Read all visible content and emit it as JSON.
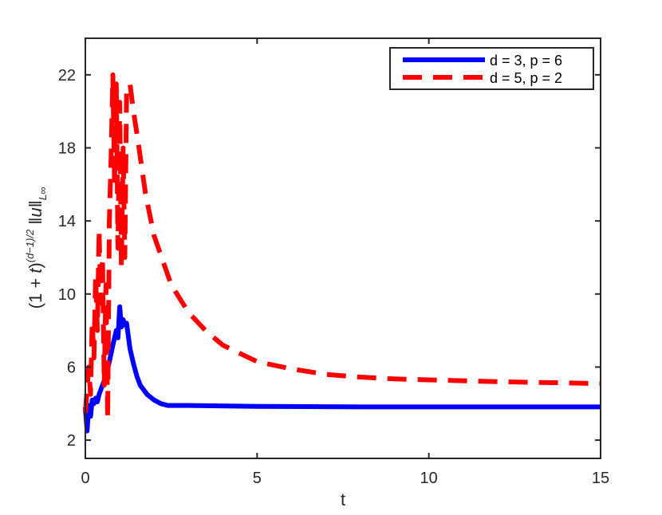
{
  "chart_data": {
    "type": "line",
    "xlabel": "t",
    "ylabel": "(1 + t)^{(d−1)/2} ‖u‖_{L∞}",
    "xlim": [
      0,
      15
    ],
    "ylim": [
      1,
      24
    ],
    "xticks": [
      0,
      5,
      10,
      15
    ],
    "yticks": [
      2,
      6,
      10,
      14,
      18,
      22
    ],
    "grid": false,
    "legend_position": "top-right",
    "series": [
      {
        "name": "d = 3, p = 6",
        "color": "#0000ff",
        "style": "solid",
        "x": [
          0,
          0.05,
          0.1,
          0.15,
          0.2,
          0.25,
          0.3,
          0.35,
          0.4,
          0.5,
          0.6,
          0.7,
          0.8,
          0.9,
          0.95,
          1.0,
          1.05,
          1.1,
          1.15,
          1.2,
          1.3,
          1.4,
          1.5,
          1.6,
          1.8,
          2.0,
          2.2,
          2.4,
          3,
          5,
          8,
          10,
          12,
          15
        ],
        "y": [
          3.8,
          2.5,
          3.9,
          3.3,
          4.2,
          4.0,
          4.3,
          4.1,
          4.5,
          5.0,
          5.5,
          6.3,
          7.2,
          8.0,
          7.6,
          9.3,
          8.2,
          8.6,
          8.3,
          8.4,
          7.0,
          6.2,
          5.5,
          5.0,
          4.5,
          4.2,
          4.0,
          3.9,
          3.9,
          3.85,
          3.82,
          3.82,
          3.82,
          3.82
        ]
      },
      {
        "name": "d = 5, p = 2",
        "color": "#ff0000",
        "style": "dashed",
        "x": [
          0,
          0.1,
          0.15,
          0.2,
          0.25,
          0.3,
          0.35,
          0.4,
          0.45,
          0.5,
          0.55,
          0.6,
          0.65,
          0.7,
          0.75,
          0.8,
          0.85,
          0.9,
          0.95,
          1.0,
          1.05,
          1.1,
          1.15,
          1.2,
          1.3,
          1.4,
          1.5,
          1.75,
          2,
          2.5,
          3,
          3.5,
          4,
          5,
          6,
          7,
          8,
          9,
          10,
          12,
          15
        ],
        "y": [
          3.5,
          6.0,
          4.5,
          8.5,
          6.5,
          11.0,
          8.0,
          13.5,
          9.5,
          12.0,
          5.0,
          10.5,
          3.2,
          14.0,
          17.5,
          22.0,
          16.0,
          21.5,
          12.5,
          20.5,
          11.5,
          18.0,
          12.0,
          21.0,
          21.5,
          20.0,
          18.8,
          15.5,
          13.2,
          10.5,
          9.0,
          8.0,
          7.2,
          6.3,
          5.9,
          5.6,
          5.45,
          5.35,
          5.3,
          5.2,
          5.1
        ]
      }
    ]
  }
}
